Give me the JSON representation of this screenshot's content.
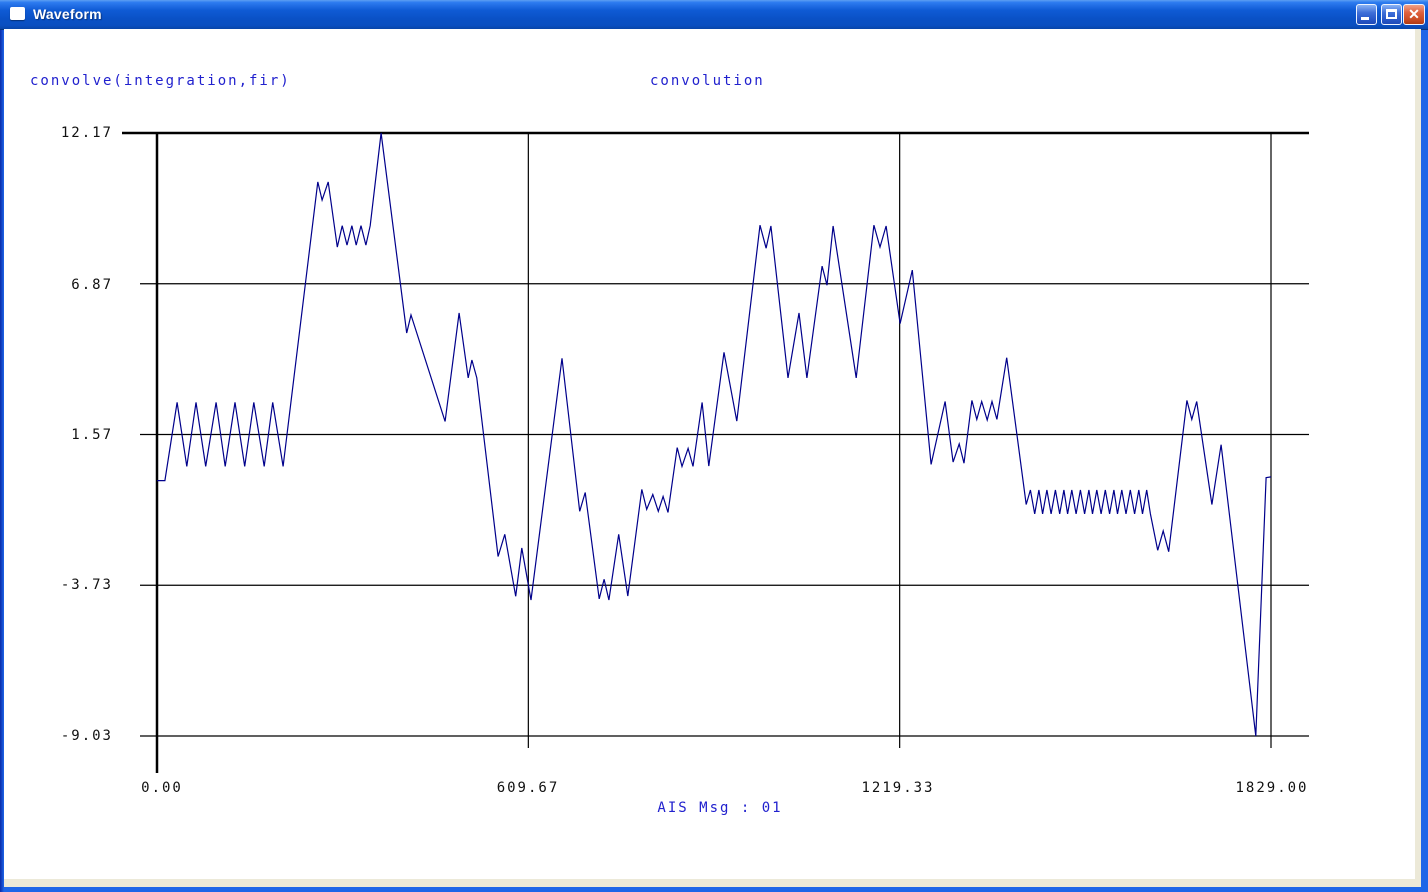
{
  "window": {
    "title": "Waveform",
    "controls": {
      "minimize": "minimize",
      "maximize": "maximize",
      "close": "close"
    }
  },
  "header": {
    "left_label": "convolve(integration,fir)",
    "right_label": "convolution"
  },
  "footer": {
    "label": "AIS Msg : 01"
  },
  "colors": {
    "waveform_line": "#00008B",
    "grid_line": "#000000",
    "label_blue": "#2121CE",
    "label_black": "#111111",
    "titlebar_blue": "#0A51C6",
    "close_red": "#C94B22",
    "content_bg": "#FFFFFF",
    "frame_beige": "#ECE9D8"
  },
  "chart_data": {
    "type": "line",
    "title": "convolution",
    "source_label": "convolve(integration,fir)",
    "xlabel": "AIS Msg : 01",
    "ylabel": "",
    "xlim": [
      0,
      1829
    ],
    "ylim": [
      -9.03,
      12.17
    ],
    "grid": true,
    "y_ticks": [
      {
        "label": "12.17",
        "value": 12.17
      },
      {
        "label": "6.87",
        "value": 6.87
      },
      {
        "label": "1.57",
        "value": 1.57
      },
      {
        "label": "-3.73",
        "value": -3.73
      },
      {
        "label": "-9.03",
        "value": -9.03
      }
    ],
    "x_ticks": [
      {
        "label": "0.00",
        "value": 0
      },
      {
        "label": "609.67",
        "value": 609.67
      },
      {
        "label": "1219.33",
        "value": 1219.33
      },
      {
        "label": "1829.00",
        "value": 1829.0
      }
    ],
    "series": [
      {
        "name": "convolution",
        "color": "#00008B",
        "points": [
          [
            0,
            -0.05
          ],
          [
            13,
            -0.05
          ],
          [
            33,
            2.7
          ],
          [
            49,
            0.45
          ],
          [
            64,
            2.7
          ],
          [
            80,
            0.45
          ],
          [
            97,
            2.7
          ],
          [
            112,
            0.45
          ],
          [
            128,
            2.7
          ],
          [
            144,
            0.45
          ],
          [
            159,
            2.7
          ],
          [
            176,
            0.45
          ],
          [
            190,
            2.7
          ],
          [
            207,
            0.45
          ],
          [
            264,
            10.45
          ],
          [
            271,
            9.81
          ],
          [
            281,
            10.45
          ],
          [
            296,
            8.16
          ],
          [
            304,
            8.91
          ],
          [
            312,
            8.23
          ],
          [
            320,
            8.91
          ],
          [
            327,
            8.23
          ],
          [
            335,
            8.91
          ],
          [
            343,
            8.23
          ],
          [
            350,
            8.91
          ],
          [
            368,
            12.17
          ],
          [
            410,
            5.14
          ],
          [
            417,
            5.77
          ],
          [
            473,
            2.03
          ],
          [
            496,
            5.84
          ],
          [
            511,
            3.56
          ],
          [
            517,
            4.19
          ],
          [
            525,
            3.56
          ],
          [
            560,
            -2.72
          ],
          [
            571,
            -1.94
          ],
          [
            589,
            -4.12
          ],
          [
            599,
            -2.42
          ],
          [
            614,
            -4.25
          ],
          [
            665,
            4.25
          ],
          [
            694,
            -1.13
          ],
          [
            703,
            -0.47
          ],
          [
            726,
            -4.21
          ],
          [
            734,
            -3.52
          ],
          [
            742,
            -4.25
          ],
          [
            758,
            -1.94
          ],
          [
            773,
            -4.11
          ],
          [
            796,
            -0.36
          ],
          [
            804,
            -1.06
          ],
          [
            814,
            -0.54
          ],
          [
            823,
            -1.13
          ],
          [
            831,
            -0.61
          ],
          [
            839,
            -1.17
          ],
          [
            854,
            1.11
          ],
          [
            862,
            0.45
          ],
          [
            872,
            1.08
          ],
          [
            880,
            0.45
          ],
          [
            895,
            2.7
          ],
          [
            906,
            0.46
          ],
          [
            931,
            4.46
          ],
          [
            952,
            2.04
          ],
          [
            990,
            8.93
          ],
          [
            1000,
            8.12
          ],
          [
            1008,
            8.9
          ],
          [
            1036,
            3.56
          ],
          [
            1054,
            5.84
          ],
          [
            1067,
            3.56
          ],
          [
            1092,
            7.49
          ],
          [
            1100,
            6.82
          ],
          [
            1110,
            8.9
          ],
          [
            1148,
            3.56
          ],
          [
            1177,
            8.93
          ],
          [
            1187,
            8.16
          ],
          [
            1197,
            8.9
          ],
          [
            1220,
            5.47
          ],
          [
            1240,
            7.35
          ],
          [
            1271,
            0.52
          ],
          [
            1294,
            2.73
          ],
          [
            1307,
            0.6
          ],
          [
            1317,
            1.24
          ],
          [
            1325,
            0.56
          ],
          [
            1338,
            2.77
          ],
          [
            1346,
            2.1
          ],
          [
            1354,
            2.73
          ],
          [
            1363,
            2.08
          ],
          [
            1371,
            2.73
          ],
          [
            1379,
            2.1
          ],
          [
            1395,
            4.27
          ],
          [
            1427,
            -0.89
          ],
          [
            1434,
            -0.38
          ],
          [
            1441,
            -1.22
          ],
          [
            1448,
            -0.38
          ],
          [
            1454,
            -1.22
          ],
          [
            1461,
            -0.38
          ],
          [
            1468,
            -1.22
          ],
          [
            1475,
            -0.38
          ],
          [
            1482,
            -1.22
          ],
          [
            1489,
            -0.38
          ],
          [
            1495,
            -1.22
          ],
          [
            1502,
            -0.38
          ],
          [
            1509,
            -1.22
          ],
          [
            1516,
            -0.38
          ],
          [
            1523,
            -1.22
          ],
          [
            1530,
            -0.38
          ],
          [
            1536,
            -1.22
          ],
          [
            1543,
            -0.38
          ],
          [
            1550,
            -1.22
          ],
          [
            1557,
            -0.38
          ],
          [
            1564,
            -1.22
          ],
          [
            1571,
            -0.38
          ],
          [
            1577,
            -1.22
          ],
          [
            1584,
            -0.38
          ],
          [
            1591,
            -1.22
          ],
          [
            1598,
            -0.38
          ],
          [
            1605,
            -1.22
          ],
          [
            1612,
            -0.38
          ],
          [
            1618,
            -1.22
          ],
          [
            1625,
            -0.38
          ],
          [
            1631,
            -1.22
          ],
          [
            1643,
            -2.5
          ],
          [
            1652,
            -1.82
          ],
          [
            1661,
            -2.55
          ],
          [
            1691,
            2.77
          ],
          [
            1699,
            2.1
          ],
          [
            1707,
            2.73
          ],
          [
            1732,
            -0.89
          ],
          [
            1747,
            1.21
          ],
          [
            1804,
            -9.03
          ],
          [
            1821,
            0.05
          ],
          [
            1829,
            0.08
          ]
        ]
      }
    ]
  }
}
